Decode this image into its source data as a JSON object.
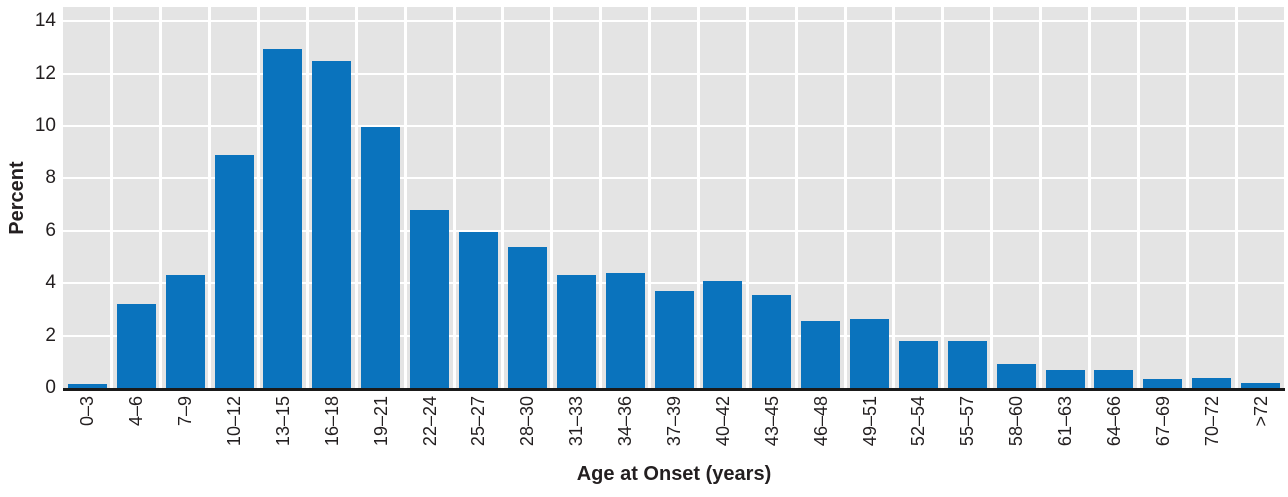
{
  "chart_data": {
    "type": "bar",
    "title": "",
    "xlabel": "Age at Onset (years)",
    "ylabel": "Percent",
    "categories": [
      "0–3",
      "4–6",
      "7–9",
      "10–12",
      "13–15",
      "16–18",
      "19–21",
      "22–24",
      "25–27",
      "28–30",
      "31–33",
      "34–36",
      "37–39",
      "40–42",
      "43–45",
      "46–48",
      "49–51",
      "52–54",
      "55–57",
      "58–60",
      "61–63",
      "64–66",
      "67–69",
      "70–72",
      ">72"
    ],
    "values": [
      0.15,
      3.2,
      4.3,
      8.9,
      12.95,
      12.5,
      9.95,
      6.8,
      5.95,
      5.4,
      4.3,
      4.4,
      3.7,
      4.1,
      3.55,
      2.55,
      2.65,
      1.8,
      1.8,
      0.9,
      0.7,
      0.7,
      0.35,
      0.4,
      0.2
    ],
    "yticks": [
      0,
      2,
      4,
      6,
      8,
      10,
      12,
      14
    ],
    "ylim": [
      0,
      14.5
    ],
    "grid": "both",
    "legend": "none",
    "bar_color": "#0a73bd",
    "plot_background_color": "#e4e4e4",
    "gridline_color": "#ffffff",
    "axis_line_color": "#1a1a1a",
    "text_color": "#231f20"
  }
}
